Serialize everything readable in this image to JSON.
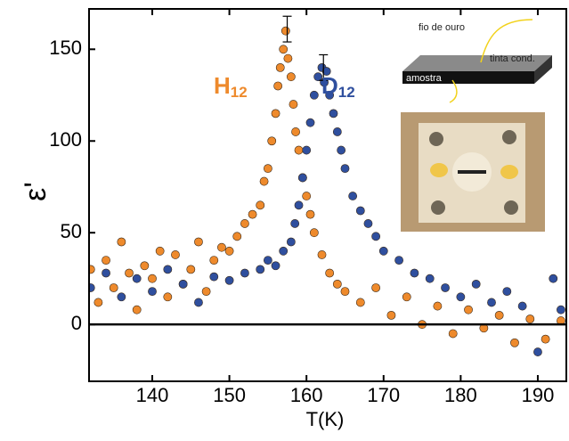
{
  "chart_data": {
    "type": "scatter",
    "x_label": "T(K)",
    "y_label": "ε'",
    "xlim": [
      131.8,
      193.7
    ],
    "ylim": [
      -31,
      172
    ],
    "xticks": [
      140,
      150,
      160,
      170,
      180,
      190
    ],
    "yticks": [
      0,
      50,
      100,
      150
    ],
    "hline": 0,
    "series": [
      {
        "name": "H",
        "subscript": "12",
        "color": "#ee8a2c",
        "x": [
          132,
          133,
          134,
          135,
          136,
          137,
          138,
          139,
          140,
          141,
          142,
          143,
          144,
          145,
          146,
          147,
          148,
          149,
          150,
          151,
          152,
          153,
          154,
          154.5,
          155,
          155.5,
          156,
          156.3,
          156.6,
          157,
          157.3,
          157.6,
          158,
          158.3,
          158.6,
          159,
          159.5,
          160,
          160.5,
          161,
          162,
          163,
          164,
          165,
          167,
          169,
          171,
          173,
          175,
          177,
          179,
          181,
          183,
          185,
          187,
          189,
          191,
          193
        ],
        "values": [
          30,
          12,
          35,
          20,
          45,
          28,
          8,
          32,
          25,
          40,
          15,
          38,
          22,
          30,
          45,
          18,
          35,
          42,
          40,
          48,
          55,
          60,
          65,
          78,
          85,
          100,
          115,
          130,
          140,
          150,
          160,
          145,
          135,
          120,
          105,
          95,
          80,
          70,
          60,
          50,
          38,
          28,
          22,
          18,
          12,
          20,
          5,
          15,
          0,
          10,
          -5,
          8,
          -2,
          5,
          -10,
          3,
          -8,
          2
        ]
      },
      {
        "name": "D",
        "subscript": "12",
        "color": "#2f4f9e",
        "x": [
          132,
          134,
          136,
          138,
          140,
          142,
          144,
          146,
          148,
          150,
          152,
          154,
          155,
          156,
          157,
          158,
          158.5,
          159,
          159.5,
          160,
          160.5,
          161,
          161.5,
          162,
          162.3,
          162.6,
          163,
          163.5,
          164,
          164.5,
          165,
          166,
          167,
          168,
          169,
          170,
          172,
          174,
          176,
          178,
          180,
          182,
          184,
          186,
          188,
          190,
          192,
          193
        ],
        "values": [
          20,
          28,
          15,
          25,
          18,
          30,
          22,
          12,
          26,
          24,
          28,
          30,
          35,
          32,
          40,
          45,
          55,
          65,
          80,
          95,
          110,
          125,
          135,
          140,
          132,
          138,
          125,
          115,
          105,
          95,
          85,
          70,
          62,
          55,
          48,
          40,
          35,
          28,
          25,
          20,
          15,
          22,
          12,
          18,
          10,
          -15,
          25,
          8
        ]
      }
    ],
    "error_bars": [
      {
        "x": 157.5,
        "y": 161,
        "err": 7
      },
      {
        "x": 162.2,
        "y": 140,
        "err": 7
      }
    ],
    "inset": {
      "labels": [
        "fio de ouro",
        "tinta cond.",
        "amostra"
      ]
    }
  }
}
